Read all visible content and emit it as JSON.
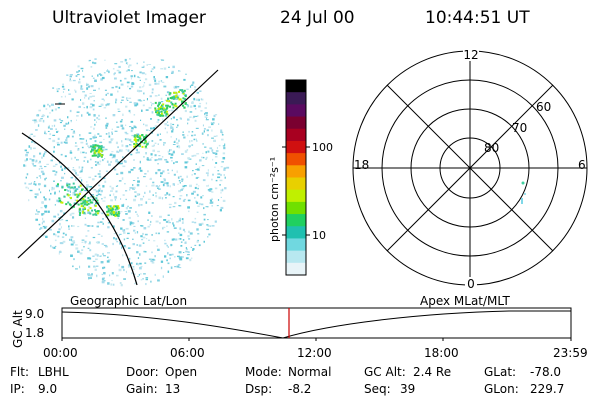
{
  "header": {
    "instrument": "Ultraviolet Imager",
    "date": "24 Jul 00",
    "time": "10:44:51 UT"
  },
  "colorbar": {
    "label": "photon cm⁻²s⁻¹",
    "ticks": [
      "100",
      "10"
    ],
    "colors": [
      "#000000",
      "#3a1a55",
      "#5a0a60",
      "#7a0030",
      "#a80020",
      "#d01010",
      "#f05000",
      "#f8a000",
      "#e8d000",
      "#c0f000",
      "#70e000",
      "#20d060",
      "#20c0b0",
      "#70d8e0",
      "#b8e8f0",
      "#e8f4f8"
    ]
  },
  "polar": {
    "mlt_labels": {
      "top": "12",
      "left": "18",
      "right": "6",
      "bottom": "0"
    },
    "lat_labels": [
      "60",
      "70",
      "80"
    ]
  },
  "timeline": {
    "left_label": "Geographic Lat/Lon",
    "right_label": "Apex MLat/MLT",
    "axis_title": "GC Alt",
    "y_ticks": [
      "9.0",
      "1.8"
    ],
    "x_ticks": [
      "00:00",
      "06:00",
      "12:00",
      "18:00",
      "23:59"
    ],
    "marker_color": "#cc0000"
  },
  "info": {
    "flt": {
      "label": "Flt:",
      "value": "LBHL"
    },
    "ip": {
      "label": "IP:",
      "value": "9.0"
    },
    "door": {
      "label": "Door:",
      "value": "Open"
    },
    "gain": {
      "label": "Gain:",
      "value": "13"
    },
    "mode": {
      "label": "Mode:",
      "value": "Normal"
    },
    "dsp": {
      "label": "Dsp:",
      "value": "-8.2"
    },
    "gcalt": {
      "label": "GC Alt:",
      "value": "2.4 Re"
    },
    "seq": {
      "label": "Seq:",
      "value": "39"
    },
    "glat": {
      "label": "GLat:",
      "value": "-78.0"
    },
    "glon": {
      "label": "GLon:",
      "value": "229.7"
    }
  }
}
